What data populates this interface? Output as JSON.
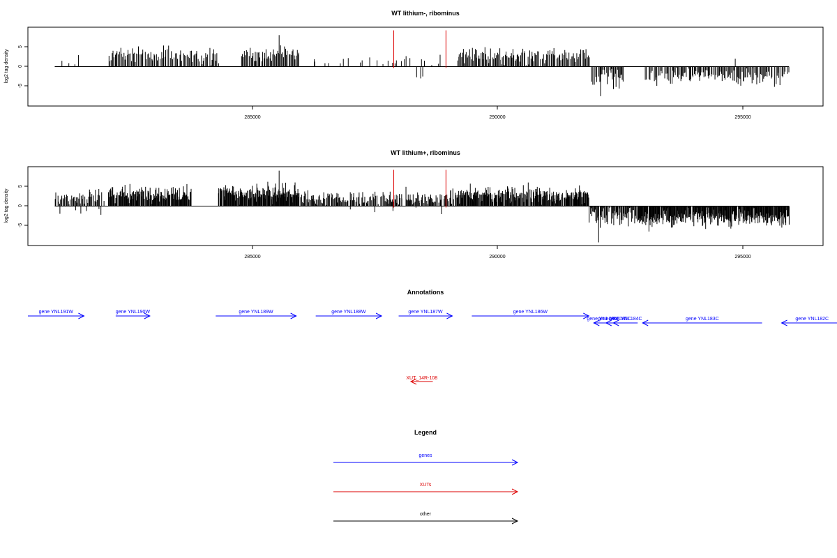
{
  "chart_data": [
    {
      "type": "bar",
      "title": "WT lithium-, ribominus",
      "xlabel": "",
      "ylabel": "log2 tag density",
      "xlim": [
        280500,
        296800
      ],
      "ylim": [
        -10,
        10
      ],
      "x_ticks": [
        285000,
        290000,
        295000
      ],
      "y_ticks": [
        -5,
        0,
        5
      ],
      "x_tick_labels": [
        "285000",
        "290000",
        "295000"
      ],
      "y_tick_labels": [
        "-5",
        "0",
        "5"
      ],
      "grid": false,
      "marker_lines": [
        {
          "x": 288000,
          "color": "#dd0000",
          "ymax": 9.2
        },
        {
          "x": 289070,
          "color": "#dd0000",
          "ymax": 9.2
        }
      ],
      "segments": [
        {
          "from": 281050,
          "to": 281600,
          "sign": 1,
          "mean": 2.0,
          "sd": 1.0,
          "step": 90,
          "fill": 0.55
        },
        {
          "from": 282150,
          "to": 284400,
          "sign": 1,
          "mean": 3.0,
          "sd": 1.0,
          "step": 22,
          "fill": 0.95
        },
        {
          "from": 284850,
          "to": 286050,
          "sign": 1,
          "mean": 3.2,
          "sd": 1.0,
          "step": 20,
          "fill": 0.95
        },
        {
          "from": 286300,
          "to": 287150,
          "sign": 1,
          "mean": 1.8,
          "sd": 0.9,
          "step": 40,
          "fill": 0.45
        },
        {
          "from": 287250,
          "to": 289000,
          "sign": 1,
          "mean": 1.4,
          "sd": 0.8,
          "step": 50,
          "fill": 0.3
        },
        {
          "from": 288450,
          "to": 288600,
          "sign": -1,
          "mean": 2.6,
          "sd": 0.3,
          "step": 60,
          "fill": 0.8
        },
        {
          "from": 289300,
          "to": 292000,
          "sign": 1,
          "mean": 2.7,
          "sd": 1.0,
          "step": 20,
          "fill": 0.95
        },
        {
          "from": 292050,
          "to": 292700,
          "sign": -1,
          "mean": 3.0,
          "sd": 1.3,
          "step": 18,
          "fill": 0.9
        },
        {
          "from": 293150,
          "to": 296100,
          "sign": -1,
          "mean": 2.6,
          "sd": 1.0,
          "step": 20,
          "fill": 0.9
        }
      ],
      "peaks": [
        {
          "x": 285650,
          "y": 8.0
        },
        {
          "x": 292240,
          "y": -7.5
        },
        {
          "x": 295000,
          "y": 2.0
        },
        {
          "x": 288950,
          "y": 3.0
        }
      ]
    },
    {
      "type": "bar",
      "title": "WT lithium+, ribominus",
      "xlabel": "",
      "ylabel": "log2 tag density",
      "xlim": [
        280500,
        296800
      ],
      "ylim": [
        -10,
        10
      ],
      "x_ticks": [
        285000,
        290000,
        295000
      ],
      "y_ticks": [
        -5,
        0,
        5
      ],
      "x_tick_labels": [
        "285000",
        "290000",
        "295000"
      ],
      "y_tick_labels": [
        "-5",
        "0",
        "5"
      ],
      "grid": false,
      "marker_lines": [
        {
          "x": 288000,
          "color": "#dd0000",
          "ymax": 9.2
        },
        {
          "x": 289070,
          "color": "#dd0000",
          "ymax": 9.2
        }
      ],
      "segments": [
        {
          "from": 281050,
          "to": 282100,
          "sign": 1,
          "mean": 2.0,
          "sd": 1.0,
          "step": 18,
          "fill": 0.8
        },
        {
          "from": 281150,
          "to": 282100,
          "sign": -1,
          "mean": 1.6,
          "sd": 0.8,
          "step": 120,
          "fill": 0.6
        },
        {
          "from": 282150,
          "to": 283850,
          "sign": 1,
          "mean": 3.0,
          "sd": 1.1,
          "step": 12,
          "fill": 0.95
        },
        {
          "from": 284400,
          "to": 286050,
          "sign": 1,
          "mean": 3.3,
          "sd": 1.1,
          "step": 10,
          "fill": 0.95
        },
        {
          "from": 286050,
          "to": 289300,
          "sign": 1,
          "mean": 2.0,
          "sd": 0.9,
          "step": 15,
          "fill": 0.8
        },
        {
          "from": 287000,
          "to": 289300,
          "sign": -1,
          "mean": 1.2,
          "sd": 0.6,
          "step": 150,
          "fill": 0.5
        },
        {
          "from": 289300,
          "to": 292000,
          "sign": 1,
          "mean": 3.0,
          "sd": 1.1,
          "step": 11,
          "fill": 0.95
        },
        {
          "from": 292000,
          "to": 293000,
          "sign": -1,
          "mean": 2.8,
          "sd": 1.4,
          "step": 14,
          "fill": 0.9
        },
        {
          "from": 293000,
          "to": 296100,
          "sign": -1,
          "mean": 3.0,
          "sd": 1.2,
          "step": 10,
          "fill": 0.95
        }
      ],
      "peaks": [
        {
          "x": 285650,
          "y": 9.0
        },
        {
          "x": 292200,
          "y": -9.2
        },
        {
          "x": 288950,
          "y": 3.0
        }
      ]
    }
  ],
  "annotations": {
    "title": "Annotations",
    "genes": [
      {
        "label": "gene YNL191W",
        "start": 280500,
        "end": 281650,
        "strand": "+",
        "row": 0
      },
      {
        "label": "gene YNL190W",
        "start": 282300,
        "end": 283000,
        "strand": "+",
        "row": 0
      },
      {
        "label": "gene YNL189W",
        "start": 284350,
        "end": 286000,
        "strand": "+",
        "row": 0
      },
      {
        "label": "gene YNL188W",
        "start": 286400,
        "end": 287750,
        "strand": "+",
        "row": 0
      },
      {
        "label": "gene YNL187W",
        "start": 288100,
        "end": 289200,
        "strand": "+",
        "row": 0
      },
      {
        "label": "gene YNL186W",
        "start": 289600,
        "end": 292000,
        "strand": "+",
        "row": 0
      },
      {
        "label": "gene YNL186C",
        "start": 292100,
        "end": 292500,
        "strand": "-",
        "row": 1
      },
      {
        "label": "gene YNL185C",
        "start": 292350,
        "end": 292700,
        "strand": "-",
        "row": 1
      },
      {
        "label": "gene YNL184C",
        "start": 292500,
        "end": 293000,
        "strand": "-",
        "row": 1
      },
      {
        "label": "gene YNL183C",
        "start": 293100,
        "end": 295550,
        "strand": "-",
        "row": 1
      },
      {
        "label": "gene YNL182C",
        "start": 295950,
        "end": 297200,
        "strand": "-",
        "row": 1
      }
    ],
    "xuts": [
      {
        "label": "XUT_14R-108",
        "start": 288350,
        "end": 288800,
        "strand": "-"
      }
    ]
  },
  "legend": {
    "title": "Legend",
    "items": [
      {
        "label": "genes",
        "color": "#0000ff"
      },
      {
        "label": "XUTs",
        "color": "#dd0000"
      },
      {
        "label": "other",
        "color": "#000000"
      }
    ]
  },
  "colors": {
    "gene": "#0000ff",
    "xut": "#dd0000",
    "signal": "#000000",
    "axis": "#000000"
  }
}
